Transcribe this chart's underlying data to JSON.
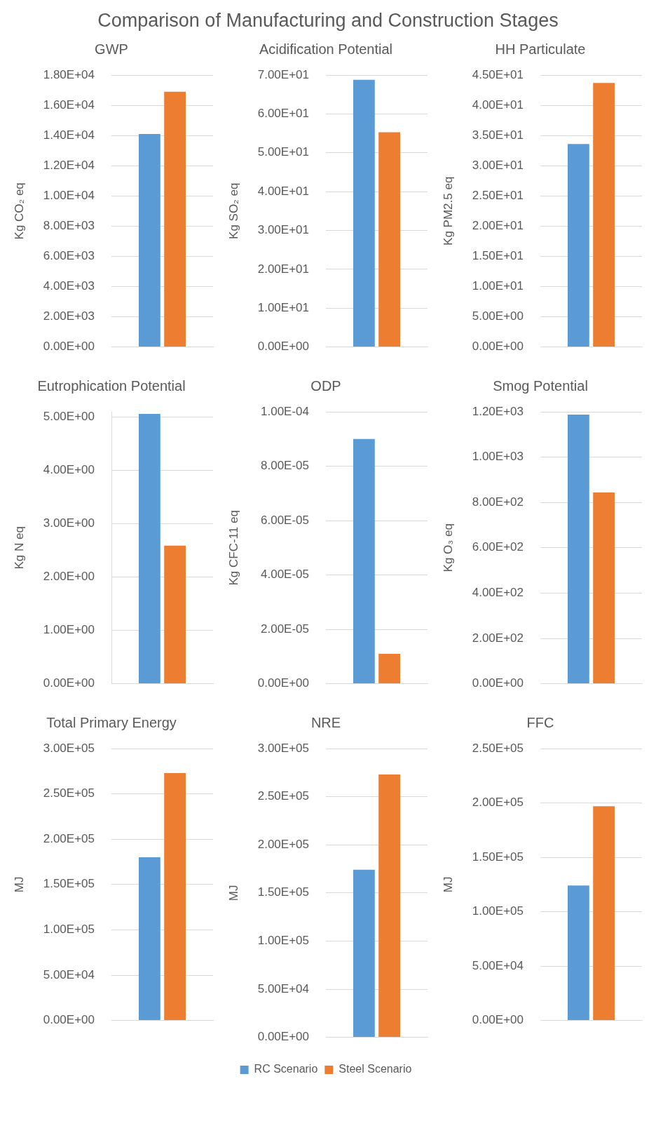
{
  "chart_data": [
    {
      "type": "other",
      "title": "Comparison of Manufacturing and Construction Stages"
    },
    {
      "type": "bar",
      "title": "GWP",
      "ylabel": "Kg CO₂ eq",
      "categories": [
        null
      ],
      "grid": "y",
      "legend": false,
      "ylim": [
        0,
        18000
      ],
      "yticks": [
        {
          "value": 0,
          "label": "0.00E+00"
        },
        {
          "value": 2000,
          "label": "2.00E+03"
        },
        {
          "value": 4000,
          "label": "4.00E+03"
        },
        {
          "value": 6000,
          "label": "6.00E+03"
        },
        {
          "value": 8000,
          "label": "8.00E+03"
        },
        {
          "value": 10000,
          "label": "1.00E+04"
        },
        {
          "value": 12000,
          "label": "1.20E+04"
        },
        {
          "value": 14000,
          "label": "1.40E+04"
        },
        {
          "value": 16000,
          "label": "1.60E+04"
        },
        {
          "value": 18000,
          "label": "1.80E+04"
        }
      ],
      "series": [
        {
          "color": "#5b9bd5",
          "values": [
            14100
          ]
        },
        {
          "color": "#ed7d31",
          "values": [
            16900
          ]
        }
      ]
    },
    {
      "type": "bar",
      "title": "Acidification Potential",
      "ylabel": "Kg SO₂ eq",
      "categories": [
        null
      ],
      "grid": "y",
      "legend": false,
      "ylim": [
        0,
        70
      ],
      "yticks": [
        {
          "value": 0,
          "label": "0.00E+00"
        },
        {
          "value": 10,
          "label": "1.00E+01"
        },
        {
          "value": 20,
          "label": "2.00E+01"
        },
        {
          "value": 30,
          "label": "3.00E+01"
        },
        {
          "value": 40,
          "label": "4.00E+01"
        },
        {
          "value": 50,
          "label": "5.00E+01"
        },
        {
          "value": 60,
          "label": "6.00E+01"
        },
        {
          "value": 70,
          "label": "7.00E+01"
        }
      ],
      "series": [
        {
          "color": "#5b9bd5",
          "values": [
            68.8
          ]
        },
        {
          "color": "#ed7d31",
          "values": [
            55.3
          ]
        }
      ]
    },
    {
      "type": "bar",
      "title": "HH Particulate",
      "ylabel": "Kg PM2.5 eq",
      "categories": [
        null
      ],
      "grid": "y",
      "legend": false,
      "ylim": [
        0,
        45
      ],
      "yticks": [
        {
          "value": 0,
          "label": "0.00E+00"
        },
        {
          "value": 5,
          "label": "5.00E+00"
        },
        {
          "value": 10,
          "label": "1.00E+01"
        },
        {
          "value": 15,
          "label": "1.50E+01"
        },
        {
          "value": 20,
          "label": "2.00E+01"
        },
        {
          "value": 25,
          "label": "2.50E+01"
        },
        {
          "value": 30,
          "label": "3.00E+01"
        },
        {
          "value": 35,
          "label": "3.50E+01"
        },
        {
          "value": 40,
          "label": "4.00E+01"
        },
        {
          "value": 45,
          "label": "4.50E+01"
        }
      ],
      "series": [
        {
          "color": "#5b9bd5",
          "values": [
            33.6
          ]
        },
        {
          "color": "#ed7d31",
          "values": [
            43.7
          ]
        }
      ]
    },
    {
      "type": "bar",
      "title": "Eutrophication Potential",
      "ylabel": "Kg N eq",
      "categories": [
        null
      ],
      "grid": "y",
      "legend": false,
      "ylim": [
        0,
        5.1
      ],
      "yticks": [
        {
          "value": 0,
          "label": "0.00E+00"
        },
        {
          "value": 1,
          "label": "1.00E+00"
        },
        {
          "value": 2,
          "label": "2.00E+00"
        },
        {
          "value": 3,
          "label": "3.00E+00"
        },
        {
          "value": 4,
          "label": "4.00E+00"
        },
        {
          "value": 5,
          "label": "5.00E+00"
        }
      ],
      "series": [
        {
          "color": "#5b9bd5",
          "values": [
            5.06
          ]
        },
        {
          "color": "#ed7d31",
          "values": [
            2.59
          ]
        }
      ]
    },
    {
      "type": "bar",
      "title": "ODP",
      "ylabel": "Kg CFC-11 eq",
      "categories": [
        null
      ],
      "grid": "y",
      "legend": false,
      "ylim": [
        0,
        0.0001
      ],
      "yticks": [
        {
          "value": 0,
          "label": "0.00E+00"
        },
        {
          "value": 2e-05,
          "label": "2.00E-05"
        },
        {
          "value": 4e-05,
          "label": "4.00E-05"
        },
        {
          "value": 6e-05,
          "label": "6.00E-05"
        },
        {
          "value": 8e-05,
          "label": "8.00E-05"
        },
        {
          "value": 0.0001,
          "label": "1.00E-04"
        }
      ],
      "series": [
        {
          "color": "#5b9bd5",
          "values": [
            9e-05
          ]
        },
        {
          "color": "#ed7d31",
          "values": [
            1.1e-05
          ]
        }
      ]
    },
    {
      "type": "bar",
      "title": "Smog Potential",
      "ylabel": "Kg O₃ eq",
      "categories": [
        null
      ],
      "grid": "y",
      "legend": false,
      "ylim": [
        0,
        1200
      ],
      "yticks": [
        {
          "value": 0,
          "label": "0.00E+00"
        },
        {
          "value": 200,
          "label": "2.00E+02"
        },
        {
          "value": 400,
          "label": "4.00E+02"
        },
        {
          "value": 600,
          "label": "6.00E+02"
        },
        {
          "value": 800,
          "label": "8.00E+02"
        },
        {
          "value": 1000,
          "label": "1.00E+03"
        },
        {
          "value": 1200,
          "label": "1.20E+03"
        }
      ],
      "series": [
        {
          "color": "#5b9bd5",
          "values": [
            1188
          ]
        },
        {
          "color": "#ed7d31",
          "values": [
            844
          ]
        }
      ]
    },
    {
      "type": "bar",
      "title": "Total Primary Energy",
      "ylabel": "MJ",
      "categories": [
        null
      ],
      "grid": "y",
      "legend": false,
      "ylim": [
        0,
        300000
      ],
      "yticks": [
        {
          "value": 0,
          "label": "0.00E+00"
        },
        {
          "value": 50000,
          "label": "5.00E+04"
        },
        {
          "value": 100000,
          "label": "1.00E+05"
        },
        {
          "value": 150000,
          "label": "1.50E+05"
        },
        {
          "value": 200000,
          "label": "2.00E+05"
        },
        {
          "value": 250000,
          "label": "2.50E+05"
        },
        {
          "value": 300000,
          "label": "3.00E+05"
        }
      ],
      "series": [
        {
          "color": "#5b9bd5",
          "values": [
            180000
          ]
        },
        {
          "color": "#ed7d31",
          "values": [
            273000
          ]
        }
      ]
    },
    {
      "type": "bar",
      "title": "NRE",
      "ylabel": "MJ",
      "categories": [
        null
      ],
      "grid": "y",
      "legend": "bottom",
      "ylim": [
        0,
        300000
      ],
      "yticks": [
        {
          "value": 0,
          "label": "0.00E+00"
        },
        {
          "value": 50000,
          "label": "5.00E+04"
        },
        {
          "value": 100000,
          "label": "1.00E+05"
        },
        {
          "value": 150000,
          "label": "1.50E+05"
        },
        {
          "value": 200000,
          "label": "2.00E+05"
        },
        {
          "value": 250000,
          "label": "2.50E+05"
        },
        {
          "value": 300000,
          "label": "3.00E+05"
        }
      ],
      "series": [
        {
          "name": "RC Scenario",
          "color": "#5b9bd5",
          "values": [
            174000
          ]
        },
        {
          "name": "Steel Scenario",
          "color": "#ed7d31",
          "values": [
            273000
          ]
        }
      ]
    },
    {
      "type": "bar",
      "title": "FFC",
      "ylabel": "MJ",
      "categories": [
        null
      ],
      "grid": "y",
      "legend": false,
      "ylim": [
        0,
        250000
      ],
      "yticks": [
        {
          "value": 0,
          "label": "0.00E+00"
        },
        {
          "value": 50000,
          "label": "5.00E+04"
        },
        {
          "value": 100000,
          "label": "1.00E+05"
        },
        {
          "value": 150000,
          "label": "1.50E+05"
        },
        {
          "value": 200000,
          "label": "2.00E+05"
        },
        {
          "value": 250000,
          "label": "2.50E+05"
        }
      ],
      "series": [
        {
          "color": "#5b9bd5",
          "values": [
            124000
          ]
        },
        {
          "color": "#ed7d31",
          "values": [
            197000
          ]
        }
      ]
    }
  ]
}
